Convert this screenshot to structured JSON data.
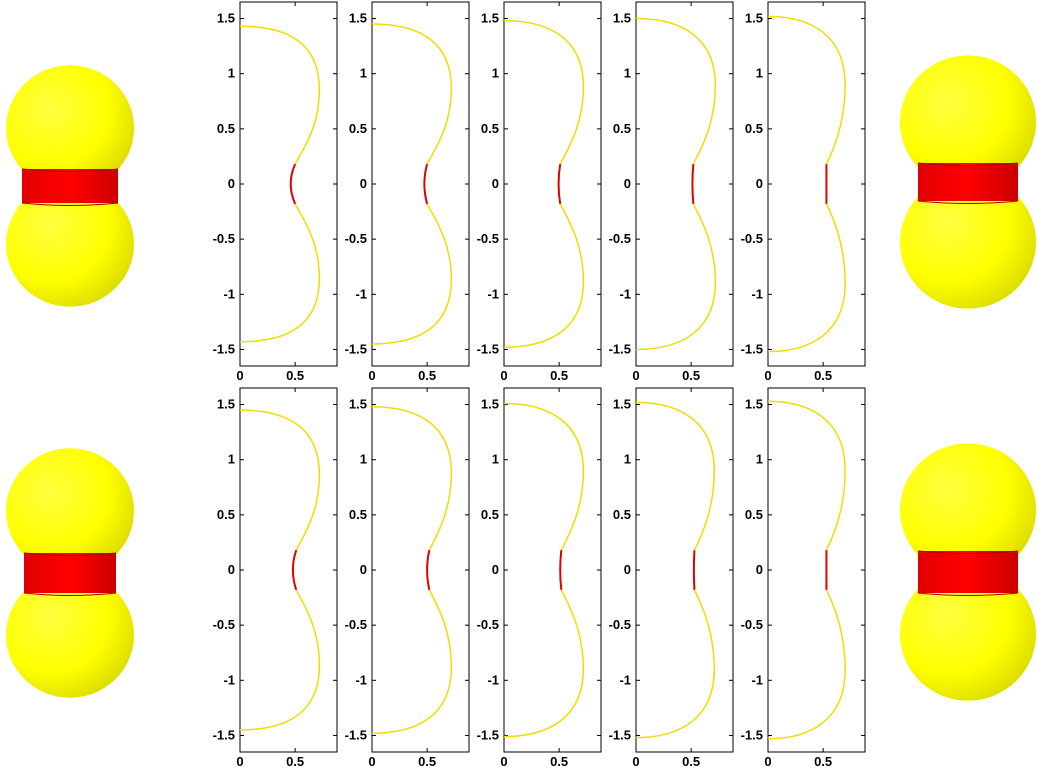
{
  "colors": {
    "axes": "#000000",
    "membrane": "#f2dc00",
    "neck": "#e00000",
    "shape_fill": "#ffff00",
    "shape_band": "#ff0000"
  },
  "chart_data": {
    "type": "line",
    "description_of_layout": "2 rows x 5 panels of meridian profiles; 3D shape renderings at left and right of each row",
    "xlim": [
      0,
      0.88
    ],
    "ylim": [
      -1.65,
      1.65
    ],
    "x_ticks": [
      {
        "v": 0,
        "label": "0"
      },
      {
        "v": 0.5,
        "label": "0.5"
      }
    ],
    "y_ticks": [
      {
        "v": 1.5,
        "label": "1.5"
      },
      {
        "v": 1,
        "label": "1"
      },
      {
        "v": 0.5,
        "label": "0.5"
      },
      {
        "v": 0,
        "label": "0"
      },
      {
        "v": -0.5,
        "label": "-0.5"
      },
      {
        "v": -1,
        "label": "-1"
      },
      {
        "v": -1.5,
        "label": "-1.5"
      }
    ],
    "rows": [
      {
        "panels": [
          {
            "top": 1.43,
            "bulge": 0.72,
            "neck_x": 0.5,
            "neck_y": 0.0,
            "neck_half": 0.18,
            "neck_bulge": -0.04
          },
          {
            "top": 1.45,
            "bulge": 0.72,
            "neck_x": 0.5,
            "neck_y": 0.0,
            "neck_half": 0.18,
            "neck_bulge": -0.025
          },
          {
            "top": 1.48,
            "bulge": 0.72,
            "neck_x": 0.51,
            "neck_y": 0.0,
            "neck_half": 0.18,
            "neck_bulge": -0.015
          },
          {
            "top": 1.5,
            "bulge": 0.72,
            "neck_x": 0.52,
            "neck_y": 0.0,
            "neck_half": 0.18,
            "neck_bulge": -0.008
          },
          {
            "top": 1.52,
            "bulge": 0.7,
            "neck_x": 0.53,
            "neck_y": 0.0,
            "neck_half": 0.18,
            "neck_bulge": 0.0
          }
        ]
      },
      {
        "panels": [
          {
            "top": 1.45,
            "bulge": 0.72,
            "neck_x": 0.51,
            "neck_y": 0.0,
            "neck_half": 0.18,
            "neck_bulge": -0.03
          },
          {
            "top": 1.48,
            "bulge": 0.72,
            "neck_x": 0.52,
            "neck_y": 0.0,
            "neck_half": 0.18,
            "neck_bulge": -0.02
          },
          {
            "top": 1.51,
            "bulge": 0.72,
            "neck_x": 0.52,
            "neck_y": 0.0,
            "neck_half": 0.18,
            "neck_bulge": -0.01
          },
          {
            "top": 1.52,
            "bulge": 0.71,
            "neck_x": 0.53,
            "neck_y": 0.0,
            "neck_half": 0.18,
            "neck_bulge": -0.005
          },
          {
            "top": 1.53,
            "bulge": 0.7,
            "neck_x": 0.53,
            "neck_y": 0.0,
            "neck_half": 0.18,
            "neck_bulge": 0.0
          }
        ]
      }
    ]
  }
}
